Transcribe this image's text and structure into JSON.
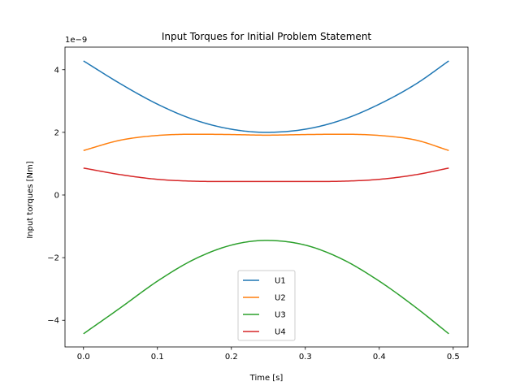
{
  "chart_data": {
    "type": "line",
    "title": "Input Torques for Initial Problem Statement",
    "xlabel": "Time [s]",
    "ylabel": "Input torques [Nm]",
    "y_offset_label": "1e−9",
    "xlim": [
      -0.025,
      0.52
    ],
    "ylim": [
      -4.85,
      4.72
    ],
    "x_ticks": [
      0.0,
      0.1,
      0.2,
      0.3,
      0.4,
      0.5
    ],
    "x_tick_labels": [
      "0.0",
      "0.1",
      "0.2",
      "0.3",
      "0.4",
      "0.5"
    ],
    "y_ticks": [
      -4,
      -2,
      0,
      2,
      4
    ],
    "y_tick_labels": [
      "−4",
      "−2",
      "0",
      "2",
      "4"
    ],
    "grid": false,
    "legend_position": "lower center",
    "x": [
      0.0,
      0.05,
      0.1,
      0.15,
      0.2,
      0.247,
      0.3,
      0.35,
      0.4,
      0.45,
      0.494
    ],
    "series": [
      {
        "name": "U1",
        "color": "#1f77b4",
        "values": [
          4.28,
          3.55,
          2.9,
          2.4,
          2.1,
          2.0,
          2.1,
          2.4,
          2.9,
          3.55,
          4.28
        ]
      },
      {
        "name": "U2",
        "color": "#ff7f0e",
        "values": [
          1.42,
          1.75,
          1.9,
          1.94,
          1.93,
          1.91,
          1.93,
          1.94,
          1.9,
          1.75,
          1.42
        ]
      },
      {
        "name": "U3",
        "color": "#2ca02c",
        "values": [
          -4.43,
          -3.6,
          -2.75,
          -2.05,
          -1.6,
          -1.45,
          -1.6,
          -2.05,
          -2.75,
          -3.6,
          -4.43
        ]
      },
      {
        "name": "U4",
        "color": "#d62728",
        "values": [
          0.86,
          0.65,
          0.5,
          0.44,
          0.43,
          0.43,
          0.43,
          0.44,
          0.5,
          0.65,
          0.86
        ]
      }
    ]
  }
}
